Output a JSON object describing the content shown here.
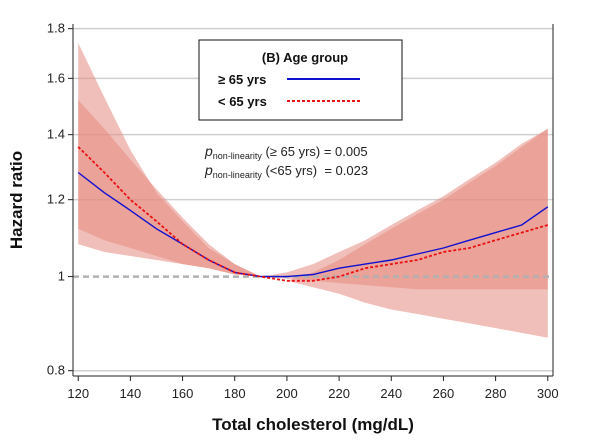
{
  "chart_data": {
    "type": "line",
    "title": "",
    "xlabel": "Total cholesterol (mg/dL)",
    "ylabel": "Hazard ratio",
    "xlim": [
      118,
      302
    ],
    "ylim": [
      0.79,
      1.82
    ],
    "y_scale": "log",
    "x_ticks": [
      120,
      140,
      160,
      180,
      200,
      220,
      240,
      260,
      280,
      300
    ],
    "x_tick_labels": [
      "120",
      "140",
      "160",
      "180",
      "200",
      "220",
      "240",
      "260",
      "280",
      "300"
    ],
    "y_ticks": [
      0.8,
      1.0,
      1.2,
      1.4,
      1.6,
      1.8
    ],
    "y_tick_labels": [
      "0.8",
      "1",
      "1.2",
      "1.4",
      "1.6",
      "1.8"
    ],
    "grid": "horizontal",
    "reference_line": {
      "y": 1.0,
      "style": "dashed",
      "color": "#b0b0b0"
    },
    "legend": {
      "title": "(B) Age group",
      "placement": "top-center",
      "entries": [
        {
          "label": "≥ 65 yrs",
          "color": "#1010d0",
          "style": "solid"
        },
        {
          "label": "< 65 yrs",
          "color": "#e81010",
          "style": "dotted"
        }
      ]
    },
    "series": [
      {
        "name": "≥ 65 yrs",
        "color": "#1010d0",
        "style": "solid",
        "x": [
          120,
          130,
          140,
          150,
          160,
          170,
          180,
          190,
          200,
          210,
          220,
          230,
          240,
          250,
          260,
          270,
          280,
          290,
          300
        ],
        "y": [
          1.28,
          1.22,
          1.17,
          1.12,
          1.08,
          1.04,
          1.01,
          1.0,
          1.0,
          1.005,
          1.02,
          1.03,
          1.04,
          1.055,
          1.07,
          1.09,
          1.11,
          1.13,
          1.18
        ],
        "ci_lower": [
          1.08,
          1.06,
          1.05,
          1.04,
          1.03,
          1.02,
          1.005,
          1.0,
          0.995,
          0.99,
          0.985,
          0.98,
          0.975,
          0.97,
          0.97,
          0.97,
          0.97,
          0.97,
          0.97
        ],
        "ci_upper": [
          1.52,
          1.42,
          1.32,
          1.23,
          1.15,
          1.08,
          1.03,
          1.0,
          1.01,
          1.03,
          1.06,
          1.09,
          1.13,
          1.17,
          1.21,
          1.26,
          1.31,
          1.37,
          1.42
        ]
      },
      {
        "name": "< 65 yrs",
        "color": "#e81010",
        "style": "dotted",
        "x": [
          120,
          130,
          140,
          150,
          160,
          170,
          180,
          190,
          200,
          210,
          220,
          230,
          240,
          250,
          260,
          270,
          280,
          290,
          300
        ],
        "y": [
          1.36,
          1.28,
          1.2,
          1.14,
          1.08,
          1.04,
          1.01,
          1.0,
          0.99,
          0.99,
          1.0,
          1.02,
          1.03,
          1.04,
          1.06,
          1.07,
          1.09,
          1.11,
          1.13
        ],
        "ci_lower": [
          1.12,
          1.09,
          1.07,
          1.05,
          1.03,
          1.02,
          1.005,
          1.0,
          0.99,
          0.975,
          0.96,
          0.94,
          0.925,
          0.915,
          0.905,
          0.895,
          0.885,
          0.875,
          0.865
        ],
        "ci_upper": [
          1.74,
          1.53,
          1.35,
          1.22,
          1.14,
          1.07,
          1.03,
          1.0,
          0.99,
          1.01,
          1.04,
          1.08,
          1.12,
          1.16,
          1.2,
          1.25,
          1.3,
          1.36,
          1.42
        ]
      }
    ],
    "annotations": [
      {
        "p": "p",
        "sub": "non-linearity",
        "text": " (≥ 65 yrs) = 0.005"
      },
      {
        "p": "p",
        "sub": "non-linearity",
        "text": " (<65 yrs)  = 0.023"
      }
    ]
  },
  "colors": {
    "ci_fill": "#e58a80",
    "grid": "#d0d0d0",
    "axis": "#222222"
  }
}
